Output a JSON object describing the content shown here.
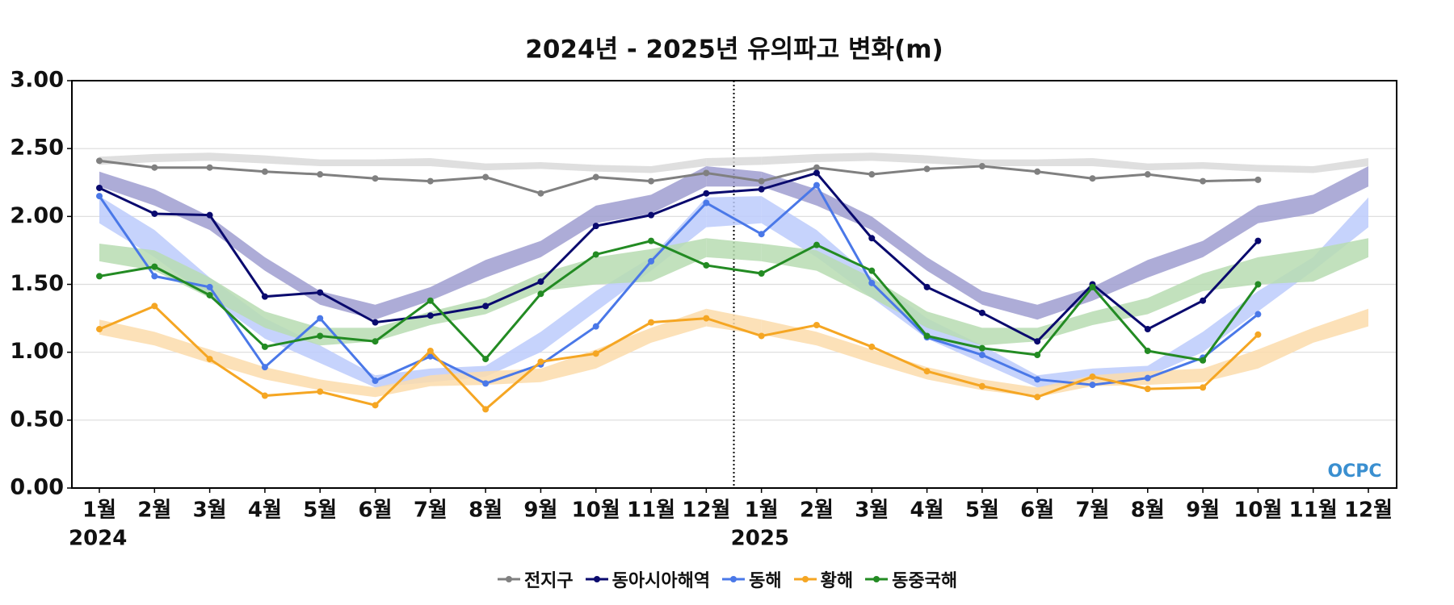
{
  "chart_data": {
    "type": "line",
    "title": "2024년 - 2025년 유의파고 변화(m)",
    "categories": [
      "1월",
      "2월",
      "3월",
      "4월",
      "5월",
      "6월",
      "7월",
      "8월",
      "9월",
      "10월",
      "11월",
      "12월",
      "1월",
      "2월",
      "3월",
      "4월",
      "5월",
      "6월",
      "7월",
      "8월",
      "9월",
      "10월",
      "11월",
      "12월"
    ],
    "years": [
      "2024",
      "2025"
    ],
    "ylim": [
      0,
      3
    ],
    "yticks": [
      {
        "value": 0,
        "label": "0.00"
      },
      {
        "value": 0.5,
        "label": "0.50"
      },
      {
        "value": 1,
        "label": "1.00"
      },
      {
        "value": 1.5,
        "label": "1.50"
      },
      {
        "value": 2,
        "label": "2.00"
      },
      {
        "value": 2.5,
        "label": "2.50"
      },
      {
        "value": 3,
        "label": "3.00"
      }
    ],
    "grid": true,
    "watermark": "OCPC",
    "series": [
      {
        "name": "전지구",
        "color": "#808080",
        "band_color": "#d9d9d9",
        "values": [
          2.41,
          2.36,
          2.36,
          2.33,
          2.31,
          2.28,
          2.26,
          2.29,
          2.17,
          2.29,
          2.26,
          2.32,
          2.26,
          2.36,
          2.31,
          2.35,
          2.37,
          2.33,
          2.28,
          2.31,
          2.26,
          2.27,
          null,
          null
        ],
        "band_low": [
          2.38,
          2.4,
          2.41,
          2.39,
          2.37,
          2.37,
          2.37,
          2.34,
          2.35,
          2.33,
          2.32,
          2.37
        ],
        "band_high": [
          2.44,
          2.46,
          2.47,
          2.45,
          2.42,
          2.42,
          2.43,
          2.39,
          2.4,
          2.38,
          2.37,
          2.43
        ]
      },
      {
        "name": "동아시아해역",
        "color": "#0a0a6e",
        "band_color": "#9f9ed0",
        "values": [
          2.21,
          2.02,
          2.01,
          1.41,
          1.44,
          1.22,
          1.27,
          1.34,
          1.52,
          1.93,
          2.01,
          2.17,
          2.2,
          2.32,
          1.84,
          1.48,
          1.29,
          1.08,
          1.5,
          1.17,
          1.38,
          1.82,
          null,
          null
        ],
        "band_low": [
          2.22,
          2.08,
          1.9,
          1.6,
          1.35,
          1.24,
          1.38,
          1.55,
          1.7,
          1.95,
          2.02,
          2.22
        ],
        "band_high": [
          2.33,
          2.2,
          2.0,
          1.7,
          1.45,
          1.35,
          1.48,
          1.68,
          1.82,
          2.08,
          2.16,
          2.37
        ]
      },
      {
        "name": "동해",
        "color": "#4a78e8",
        "band_color": "#bccbfb",
        "values": [
          2.15,
          1.56,
          1.48,
          0.89,
          1.25,
          0.79,
          0.97,
          0.77,
          0.91,
          1.19,
          1.67,
          2.1,
          1.87,
          2.23,
          1.51,
          1.11,
          0.98,
          0.8,
          0.76,
          0.81,
          0.96,
          1.28,
          null,
          null
        ],
        "band_low": [
          1.95,
          1.7,
          1.4,
          1.1,
          0.92,
          0.74,
          0.78,
          0.82,
          1.0,
          1.3,
          1.6,
          1.92
        ],
        "band_high": [
          2.15,
          1.9,
          1.55,
          1.25,
          1.05,
          0.83,
          0.88,
          0.9,
          1.15,
          1.45,
          1.7,
          2.14
        ]
      },
      {
        "name": "황해",
        "color": "#f5a623",
        "band_color": "#fcdcab",
        "values": [
          1.17,
          1.34,
          0.95,
          0.68,
          0.71,
          0.61,
          1.01,
          0.58,
          0.93,
          0.99,
          1.22,
          1.25,
          1.12,
          1.2,
          1.04,
          0.86,
          0.75,
          0.67,
          0.82,
          0.73,
          0.74,
          1.13,
          null,
          null
        ],
        "band_low": [
          1.13,
          1.05,
          0.92,
          0.8,
          0.72,
          0.67,
          0.75,
          0.76,
          0.78,
          0.88,
          1.07,
          1.19
        ],
        "band_high": [
          1.24,
          1.15,
          1.02,
          0.89,
          0.8,
          0.74,
          0.83,
          0.86,
          0.88,
          1.02,
          1.18,
          1.32
        ]
      },
      {
        "name": "동중국해",
        "color": "#238b23",
        "band_color": "#b7dcb2",
        "values": [
          1.56,
          1.63,
          1.42,
          1.04,
          1.12,
          1.08,
          1.38,
          0.95,
          1.43,
          1.72,
          1.82,
          1.64,
          1.58,
          1.79,
          1.6,
          1.12,
          1.03,
          0.98,
          1.48,
          1.01,
          0.94,
          1.5,
          null,
          null
        ],
        "band_low": [
          1.67,
          1.6,
          1.4,
          1.18,
          1.05,
          1.08,
          1.2,
          1.28,
          1.45,
          1.5,
          1.52,
          1.7
        ],
        "band_high": [
          1.8,
          1.75,
          1.55,
          1.3,
          1.18,
          1.18,
          1.3,
          1.4,
          1.58,
          1.7,
          1.76,
          1.84
        ]
      }
    ]
  }
}
